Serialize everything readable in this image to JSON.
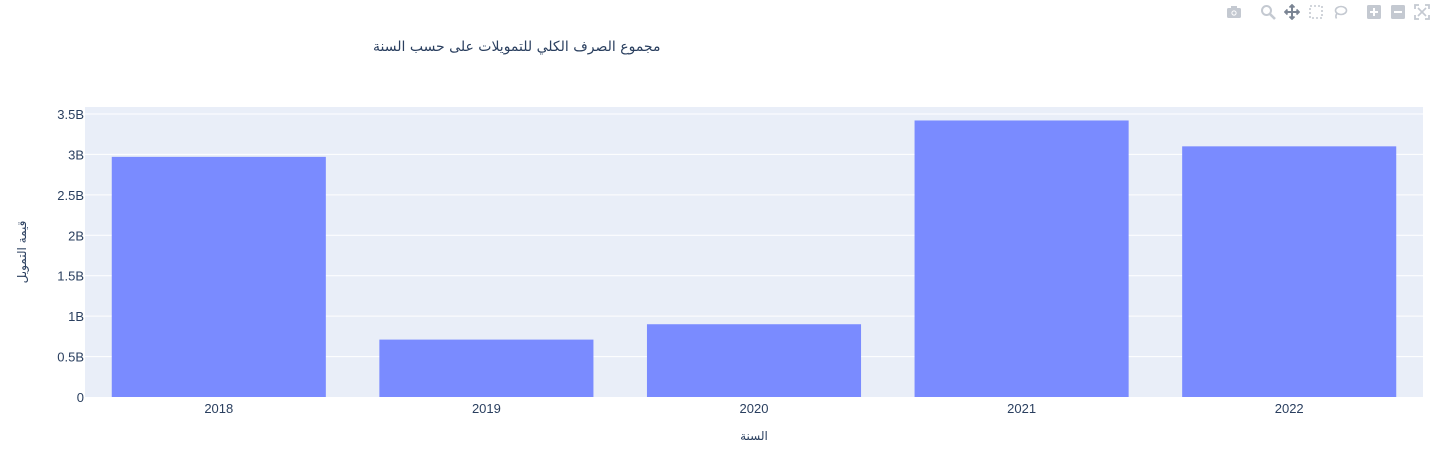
{
  "chart_data": {
    "type": "bar",
    "title": "مجموع الصرف الكلي للتمويلات على حسب السنة",
    "xlabel": "السنة",
    "ylabel": "قيمة التمويل",
    "categories": [
      "2018",
      "2019",
      "2020",
      "2021",
      "2022"
    ],
    "series": [
      {
        "values": [
          2970000000,
          710000000,
          900000000,
          3420000000,
          3100000000
        ]
      }
    ],
    "ylim": [
      0,
      3600000000
    ],
    "yticks": [
      0,
      500000000,
      1000000000,
      1500000000,
      2000000000,
      2500000000,
      3000000000,
      3500000000
    ],
    "ytick_labels": [
      "0",
      "0.5B",
      "1B",
      "1.5B",
      "2B",
      "2.5B",
      "3B",
      "3.5B"
    ],
    "grid": true,
    "colors": {
      "bar": "#7a8bff",
      "plot_bg": "#e9eef8",
      "grid": "#ffffff",
      "text": "#2a3f5f"
    }
  },
  "modebar": {
    "icons": [
      "camera-icon",
      "zoom-icon",
      "pan-icon",
      "box-select-icon",
      "lasso-select-icon",
      "zoom-in-icon",
      "zoom-out-icon",
      "autoscale-icon"
    ]
  }
}
